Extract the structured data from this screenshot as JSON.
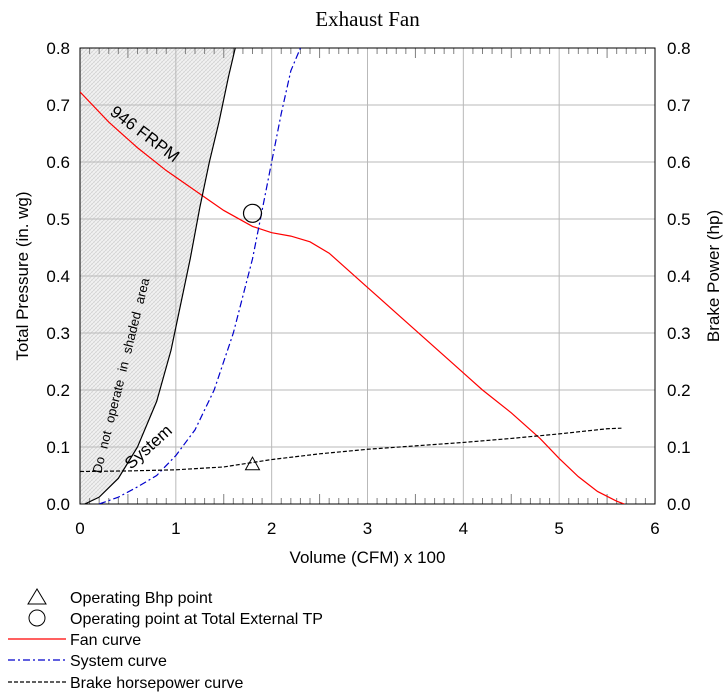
{
  "chart_data": {
    "type": "line",
    "title": "Exhaust Fan",
    "xlabel": "Volume (CFM) x 100",
    "ylabel": "Total Pressure (in. wg)",
    "y2label": "Brake Power (hp)",
    "xlim": [
      0,
      6
    ],
    "ylim": [
      0,
      0.8
    ],
    "y2lim": [
      0,
      0.8
    ],
    "grid": true,
    "x_ticks": [
      "0",
      "1",
      "2",
      "3",
      "4",
      "5",
      "6"
    ],
    "y_ticks": [
      "0.0",
      "0.1",
      "0.2",
      "0.3",
      "0.4",
      "0.5",
      "0.6",
      "0.7",
      "0.8"
    ],
    "y2_ticks": [
      "0.0",
      "0.1",
      "0.2",
      "0.3",
      "0.4",
      "0.5",
      "0.6",
      "0.7",
      "0.8"
    ],
    "series": [
      {
        "name": "Fan curve",
        "color": "#ff0000",
        "style": "solid",
        "x": [
          0,
          0.3,
          0.6,
          0.9,
          1.2,
          1.5,
          1.8,
          2.0,
          2.2,
          2.4,
          2.6,
          2.8,
          3.0,
          3.3,
          3.6,
          3.9,
          4.2,
          4.5,
          4.8,
          5.0,
          5.2,
          5.4,
          5.6,
          5.68
        ],
        "y": [
          0.723,
          0.67,
          0.625,
          0.585,
          0.55,
          0.515,
          0.487,
          0.476,
          0.47,
          0.46,
          0.44,
          0.41,
          0.38,
          0.335,
          0.29,
          0.245,
          0.2,
          0.16,
          0.115,
          0.08,
          0.048,
          0.022,
          0.005,
          0
        ]
      },
      {
        "name": "System curve",
        "color": "#0000cc",
        "style": "dash-dot",
        "x": [
          0.2,
          0.4,
          0.6,
          0.8,
          1.0,
          1.2,
          1.4,
          1.6,
          1.8,
          2.0,
          2.1,
          2.2,
          2.3
        ],
        "y": [
          0,
          0.012,
          0.03,
          0.05,
          0.085,
          0.13,
          0.2,
          0.3,
          0.43,
          0.6,
          0.685,
          0.76,
          0.8
        ]
      },
      {
        "name": "Brake horsepower curve",
        "color": "#000000",
        "style": "dashed",
        "x": [
          0,
          0.5,
          1.0,
          1.5,
          2.0,
          2.5,
          3.0,
          3.5,
          4.0,
          4.5,
          5.0,
          5.5,
          5.65
        ],
        "y": [
          0.057,
          0.058,
          0.06,
          0.065,
          0.078,
          0.088,
          0.096,
          0.102,
          0.108,
          0.115,
          0.123,
          0.132,
          0.133
        ]
      },
      {
        "name": "System",
        "color": "#000000",
        "style": "solid",
        "x": [
          0.05,
          0.2,
          0.4,
          0.6,
          0.8,
          0.95,
          1.05,
          1.15,
          1.25,
          1.35,
          1.45,
          1.55,
          1.62
        ],
        "y": [
          0,
          0.012,
          0.045,
          0.1,
          0.18,
          0.27,
          0.35,
          0.43,
          0.52,
          0.6,
          0.67,
          0.75,
          0.8
        ]
      }
    ],
    "markers": [
      {
        "name": "Operating Bhp point",
        "shape": "triangle",
        "x": 1.8,
        "y": 0.07
      },
      {
        "name": "Operating point at Total External TP",
        "shape": "circle",
        "x": 1.8,
        "y": 0.51
      }
    ],
    "annotations": {
      "rpm_label": "946 FRPM",
      "shaded_label": "Do not operate in shaded area",
      "system_label": "System"
    },
    "legend": {
      "placement": "bottom-left",
      "entries": [
        {
          "symbol": "triangle",
          "label": "Operating Bhp point"
        },
        {
          "symbol": "circle",
          "label": "Operating point at Total External TP"
        },
        {
          "symbol": "red-solid",
          "label": "Fan curve"
        },
        {
          "symbol": "blue-dashdot",
          "label": "System curve"
        },
        {
          "symbol": "black-dashed",
          "label": "Brake horsepower curve"
        }
      ]
    }
  }
}
